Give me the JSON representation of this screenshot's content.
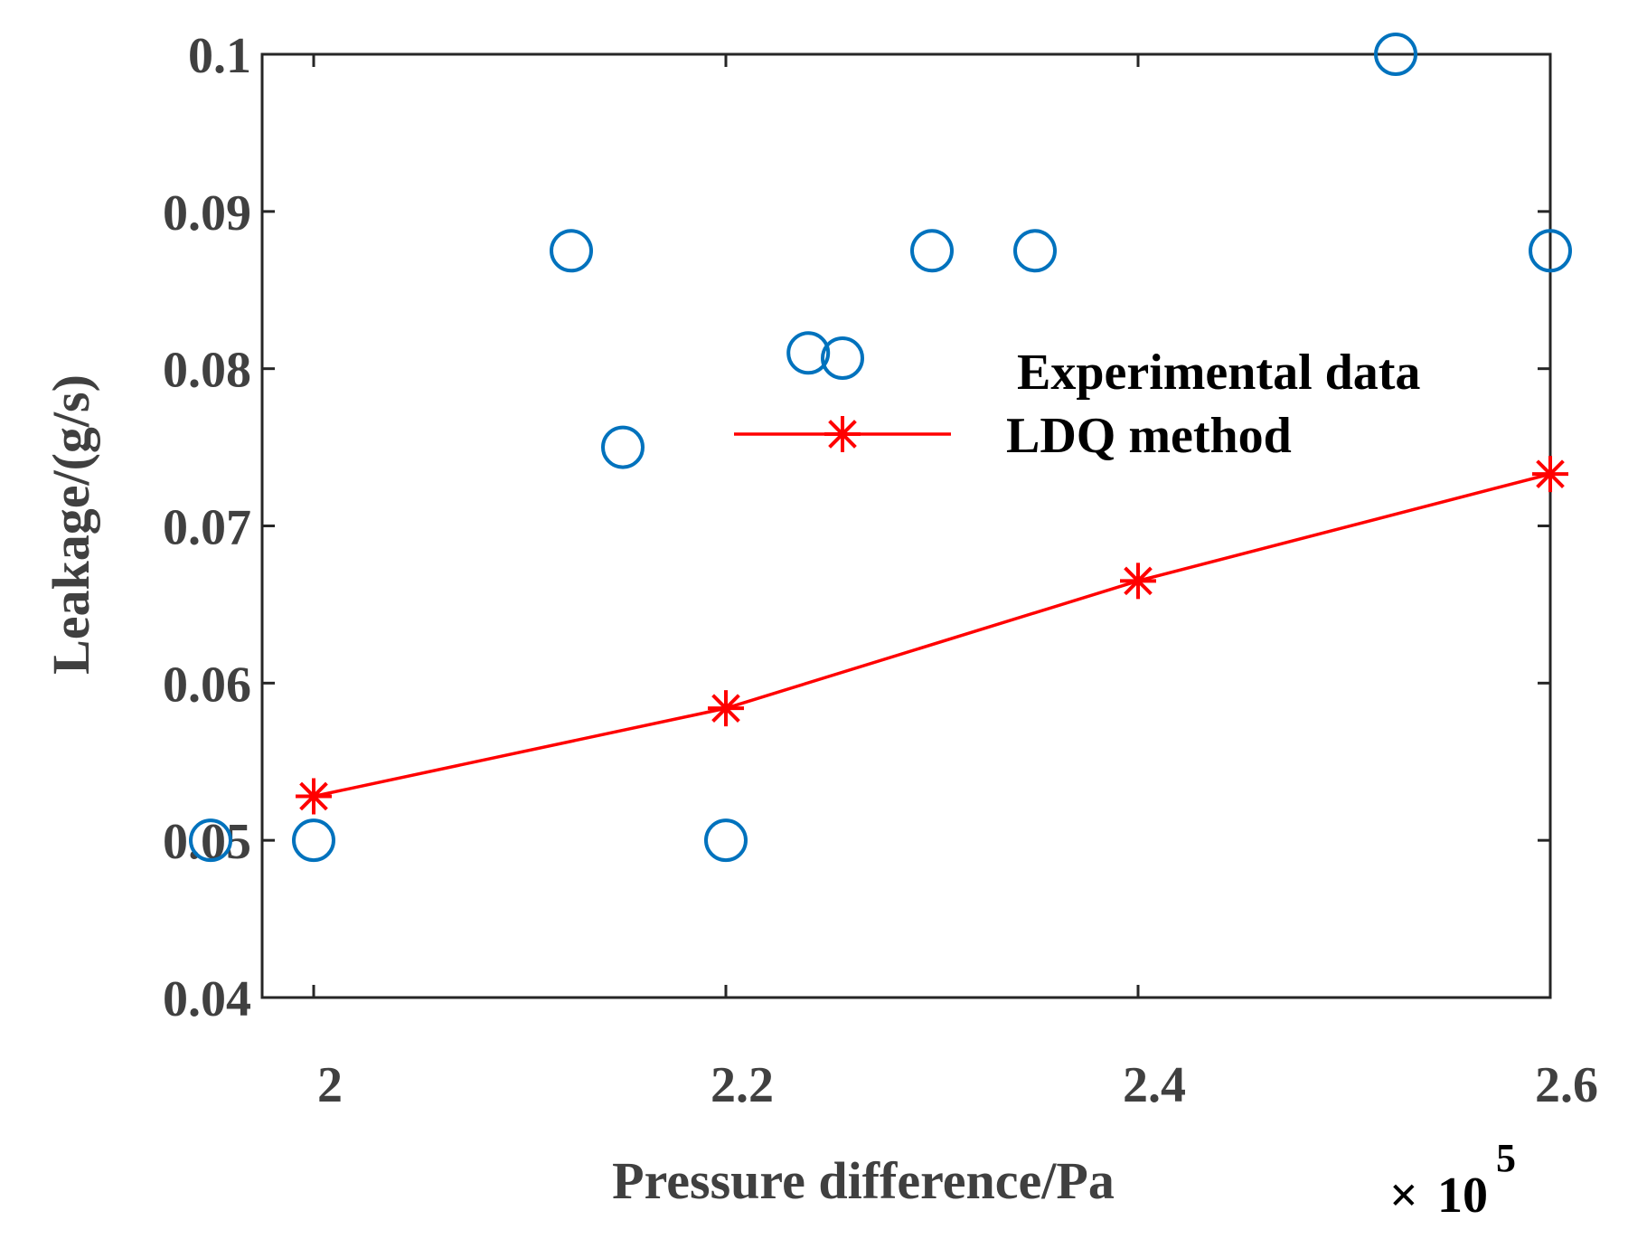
{
  "chart_data": {
    "type": "scatter",
    "title": "",
    "xlabel": "Pressure difference/Pa",
    "ylabel": "Leakage/(g/s)",
    "x_exponent_label": {
      "times": "×",
      "base": "10",
      "exp": "5"
    },
    "xlim": [
      1.975,
      2.6
    ],
    "ylim": [
      0.04,
      0.1
    ],
    "x_ticks": [
      2.0,
      2.2,
      2.4,
      2.6
    ],
    "x_tick_labels": [
      "2",
      "2.2",
      "2.4",
      "2.6"
    ],
    "y_ticks": [
      0.04,
      0.05,
      0.06,
      0.07,
      0.08,
      0.09,
      0.1
    ],
    "y_tick_labels": [
      "0.04",
      "0.05",
      "0.06",
      "0.07",
      "0.08",
      "0.09",
      "0.1"
    ],
    "grid": false,
    "legend_position": "center-right",
    "series": [
      {
        "name": "Experimental data",
        "marker": "circle",
        "line": false,
        "color": "#0072BD",
        "x": [
          1.95,
          2.0,
          2.125,
          2.15,
          2.2,
          2.24,
          2.3,
          2.35,
          2.525,
          2.6
        ],
        "y": [
          0.05,
          0.05,
          0.0875,
          0.075,
          0.05,
          0.081,
          0.0875,
          0.0875,
          0.1,
          0.0875
        ]
      },
      {
        "name": "LDQ method",
        "marker": "asterisk",
        "line": true,
        "color": "#FF0000",
        "x": [
          2.0,
          2.2,
          2.4,
          2.6
        ],
        "y": [
          0.0528,
          0.0584,
          0.0665,
          0.0733
        ]
      }
    ]
  }
}
